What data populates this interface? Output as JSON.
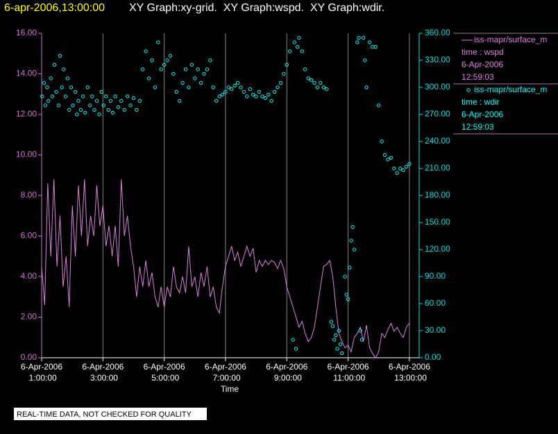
{
  "chart_data": {
    "type": "line",
    "title": "6-apr-2006,13:00:00",
    "subtitle": "XY Graph:xy-grid.  XY Graph:wspd.  XY Graph:wdir.",
    "xlabel": "Time",
    "note": "REAL-TIME DATA, NOT CHECKED FOR QUALITY",
    "xlim": [
      1,
      13.32
    ],
    "xticks": [
      {
        "value": 1,
        "label": "6-Apr-2006 1:00:00"
      },
      {
        "value": 3,
        "label": "6-Apr-2006 3:00:00"
      },
      {
        "value": 5,
        "label": "6-Apr-2006 5:00:00"
      },
      {
        "value": 7,
        "label": "6-Apr-2006 7:00:00"
      },
      {
        "value": 9,
        "label": "6-Apr-2006 9:00:00"
      },
      {
        "value": 11,
        "label": "6-Apr-2006 11:00:00"
      },
      {
        "value": 13,
        "label": "6-Apr-2006 13:00:00"
      }
    ],
    "grid": true,
    "ylim": [
      0,
      16
    ],
    "yticks": [
      {
        "value": 0,
        "label": "0.00"
      },
      {
        "value": 2,
        "label": "2.00"
      },
      {
        "value": 4,
        "label": "4.00"
      },
      {
        "value": 6,
        "label": "6.00"
      },
      {
        "value": 8,
        "label": "8.00"
      },
      {
        "value": 10,
        "label": "10.00"
      },
      {
        "value": 12,
        "label": "12.00"
      },
      {
        "value": 14,
        "label": "14.00"
      },
      {
        "value": 16,
        "label": "16.00"
      }
    ],
    "y2lim": [
      0,
      360
    ],
    "y2ticks": [
      {
        "value": 0,
        "label": "0.00"
      },
      {
        "value": 30,
        "label": "30.00"
      },
      {
        "value": 60,
        "label": "60.00"
      },
      {
        "value": 90,
        "label": "90.00"
      },
      {
        "value": 120,
        "label": "120.00"
      },
      {
        "value": 150,
        "label": "150.00"
      },
      {
        "value": 180,
        "label": "180.00"
      },
      {
        "value": 210,
        "label": "210.00"
      },
      {
        "value": 240,
        "label": "240.00"
      },
      {
        "value": 270,
        "label": "270.00"
      },
      {
        "value": 300,
        "label": "300.00"
      },
      {
        "value": 330,
        "label": "330.00"
      },
      {
        "value": 360,
        "label": "360.00"
      }
    ],
    "series": [
      {
        "name": "iss-mapr/surface_m",
        "color": "#e080e0",
        "mark": "line",
        "axis": "y",
        "legend_lines": [
          "time : wspd",
          "6-Apr-2006",
          "12:59:03"
        ],
        "x": [
          1.0,
          1.1,
          1.2,
          1.3,
          1.4,
          1.5,
          1.6,
          1.7,
          1.8,
          1.9,
          2.0,
          2.1,
          2.2,
          2.3,
          2.4,
          2.5,
          2.6,
          2.7,
          2.8,
          2.9,
          3.0,
          3.1,
          3.2,
          3.3,
          3.4,
          3.5,
          3.6,
          3.7,
          3.8,
          3.9,
          4.0,
          4.1,
          4.2,
          4.3,
          4.4,
          4.5,
          4.6,
          4.7,
          4.8,
          4.9,
          5.0,
          5.1,
          5.2,
          5.3,
          5.4,
          5.5,
          5.6,
          5.7,
          5.8,
          5.9,
          6.0,
          6.1,
          6.2,
          6.3,
          6.4,
          6.5,
          6.6,
          6.7,
          6.8,
          6.9,
          7.0,
          7.1,
          7.2,
          7.3,
          7.4,
          7.5,
          7.6,
          7.7,
          7.8,
          7.9,
          8.0,
          8.1,
          8.2,
          8.3,
          8.4,
          8.5,
          8.6,
          8.7,
          8.8,
          8.9,
          9.0,
          9.1,
          9.2,
          9.3,
          9.4,
          9.5,
          9.6,
          9.7,
          9.8,
          9.9,
          10.0,
          10.1,
          10.2,
          10.3,
          10.4,
          10.5,
          10.6,
          10.7,
          10.8,
          10.9,
          11.0,
          11.1,
          11.2,
          11.3,
          11.4,
          11.5,
          11.6,
          11.7,
          11.8,
          11.9,
          12.0,
          12.1,
          12.2,
          12.3,
          12.4,
          12.5,
          12.6,
          12.7,
          12.8,
          12.9,
          13.0
        ],
        "values": [
          4.5,
          2.6,
          8.6,
          5.0,
          8.8,
          4.5,
          7.0,
          3.5,
          5.0,
          2.5,
          7.5,
          5.0,
          8.5,
          6.0,
          8.8,
          5.5,
          7.0,
          6.0,
          8.5,
          6.5,
          7.5,
          5.5,
          6.5,
          5.0,
          6.5,
          4.5,
          8.8,
          6.0,
          7.0,
          5.5,
          4.5,
          3.0,
          4.5,
          3.5,
          4.8,
          3.5,
          4.2,
          3.0,
          2.5,
          3.5,
          2.5,
          3.5,
          3.0,
          4.5,
          3.5,
          3.2,
          4.0,
          3.2,
          5.5,
          3.5,
          4.0,
          3.0,
          4.2,
          3.5,
          4.5,
          3.0,
          3.5,
          2.5,
          2.2,
          3.5,
          4.5,
          5.0,
          5.5,
          4.8,
          5.2,
          4.5,
          5.0,
          5.5,
          5.0,
          5.4,
          4.2,
          4.8,
          4.5,
          4.8,
          4.6,
          4.8,
          4.7,
          4.4,
          4.8,
          4.4,
          3.5,
          3.0,
          2.5,
          2.0,
          1.5,
          1.8,
          1.2,
          0.8,
          1.0,
          1.5,
          2.5,
          3.5,
          4.5,
          4.6,
          4.8,
          4.0,
          2.5,
          1.2,
          0.8,
          0.5,
          0.6,
          0.3,
          1.0,
          1.2,
          1.5,
          0.8,
          1.6,
          0.5,
          0.2,
          0.0,
          0.3,
          1.2,
          1.0,
          1.4,
          1.7,
          1.3,
          1.5,
          1.2,
          1.0,
          1.5,
          1.7
        ]
      },
      {
        "name": "iss-mapr/surface_m",
        "color": "#00ffff",
        "mark": "scatter",
        "axis": "y2",
        "legend_lines": [
          "time : wdir",
          "6-Apr-2006",
          "12:59:03"
        ],
        "x": [
          1.02,
          1.08,
          1.12,
          1.18,
          1.22,
          1.3,
          1.35,
          1.42,
          1.48,
          1.55,
          1.6,
          1.66,
          1.72,
          1.78,
          1.85,
          1.9,
          1.96,
          2.02,
          2.1,
          2.15,
          2.2,
          2.28,
          2.35,
          2.42,
          2.5,
          2.58,
          2.65,
          2.72,
          2.8,
          2.88,
          2.95,
          3.02,
          3.1,
          3.18,
          3.25,
          3.32,
          3.4,
          3.5,
          3.6,
          3.7,
          3.8,
          3.9,
          4.0,
          4.1,
          4.2,
          4.3,
          4.4,
          4.5,
          4.6,
          4.7,
          4.8,
          4.9,
          5.0,
          5.1,
          5.2,
          5.3,
          5.4,
          5.5,
          5.6,
          5.7,
          5.8,
          5.9,
          6.0,
          6.1,
          6.2,
          6.3,
          6.4,
          6.5,
          6.6,
          6.7,
          6.8,
          6.9,
          7.0,
          7.1,
          7.2,
          7.3,
          7.4,
          7.5,
          7.6,
          7.7,
          7.8,
          7.9,
          8.0,
          8.1,
          8.2,
          8.3,
          8.4,
          8.5,
          8.6,
          8.7,
          8.8,
          8.9,
          9.0,
          9.1,
          9.2,
          9.25,
          9.3,
          9.35,
          9.4,
          9.5,
          9.6,
          9.7,
          9.8,
          9.9,
          10.0,
          10.1,
          10.2,
          10.3,
          10.45,
          10.5,
          10.55,
          10.6,
          10.65,
          10.7,
          10.75,
          10.8,
          10.9,
          10.95,
          11.0,
          11.05,
          11.1,
          11.15,
          11.2,
          11.3,
          11.35,
          11.4,
          11.45,
          11.5,
          11.55,
          11.6,
          11.7,
          11.8,
          11.9,
          12.0,
          12.1,
          12.2,
          12.3,
          12.4,
          12.5,
          12.6,
          12.7,
          12.8,
          12.9,
          13.0
        ],
        "values": [
          290,
          305,
          280,
          300,
          285,
          310,
          290,
          325,
          295,
          280,
          335,
          300,
          320,
          290,
          310,
          275,
          300,
          280,
          295,
          270,
          285,
          275,
          290,
          272,
          300,
          280,
          290,
          275,
          285,
          270,
          295,
          280,
          290,
          275,
          285,
          272,
          290,
          278,
          285,
          275,
          290,
          280,
          288,
          275,
          285,
          320,
          340,
          310,
          330,
          300,
          350,
          320,
          325,
          330,
          335,
          315,
          295,
          285,
          305,
          320,
          300,
          325,
          310,
          320,
          305,
          315,
          320,
          330,
          300,
          285,
          290,
          292,
          295,
          300,
          298,
          302,
          305,
          300,
          295,
          290,
          298,
          292,
          290,
          295,
          290,
          288,
          292,
          285,
          295,
          300,
          305,
          315,
          325,
          340,
          20,
          350,
          10,
          345,
          355,
          340,
          320,
          310,
          308,
          305,
          300,
          305,
          300,
          298,
          40,
          35,
          20,
          25,
          10,
          30,
          15,
          5,
          90,
          70,
          65,
          100,
          130,
          145,
          120,
          350,
          355,
          30,
          20,
          355,
          330,
          300,
          350,
          345,
          345,
          280,
          240,
          225,
          220,
          222,
          210,
          205,
          210,
          208,
          212,
          215
        ]
      }
    ]
  }
}
